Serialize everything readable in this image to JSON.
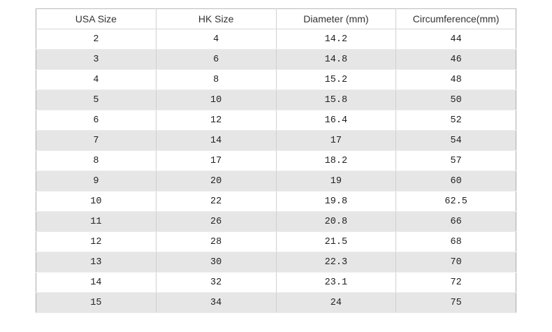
{
  "headers": [
    "USA Size",
    "HK Size",
    "Diameter (mm)",
    "Circumference(mm)"
  ],
  "rows": [
    [
      "2",
      "4",
      "14.2",
      "44"
    ],
    [
      "3",
      "6",
      "14.8",
      "46"
    ],
    [
      "4",
      "8",
      "15.2",
      "48"
    ],
    [
      "5",
      "10",
      "15.8",
      "50"
    ],
    [
      "6",
      "12",
      "16.4",
      "52"
    ],
    [
      "7",
      "14",
      "17",
      "54"
    ],
    [
      "8",
      "17",
      "18.2",
      "57"
    ],
    [
      "9",
      "20",
      "19",
      "60"
    ],
    [
      "10",
      "22",
      "19.8",
      "62.5"
    ],
    [
      "11",
      "26",
      "20.8",
      "66"
    ],
    [
      "12",
      "28",
      "21.5",
      "68"
    ],
    [
      "13",
      "30",
      "22.3",
      "70"
    ],
    [
      "14",
      "32",
      "23.1",
      "72"
    ],
    [
      "15",
      "34",
      "24",
      "75"
    ]
  ],
  "colors": {
    "stripe": "#e6e6e6",
    "border": "#d0d0d0"
  }
}
